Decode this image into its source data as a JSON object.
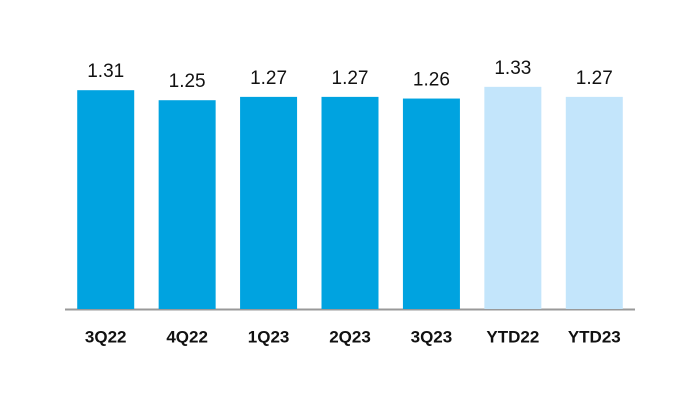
{
  "chart_data": {
    "type": "bar",
    "categories": [
      "3Q22",
      "4Q22",
      "1Q23",
      "2Q23",
      "3Q23",
      "YTD22",
      "YTD23"
    ],
    "values": [
      1.31,
      1.25,
      1.27,
      1.27,
      1.26,
      1.33,
      1.27
    ],
    "value_labels": [
      "1.31",
      "1.25",
      "1.27",
      "1.27",
      "1.26",
      "1.33",
      "1.27"
    ],
    "colors": [
      "#00a3e0",
      "#00a3e0",
      "#00a3e0",
      "#00a3e0",
      "#00a3e0",
      "#c3e5fb",
      "#c3e5fb"
    ],
    "ylim": [
      0,
      1.85
    ]
  }
}
